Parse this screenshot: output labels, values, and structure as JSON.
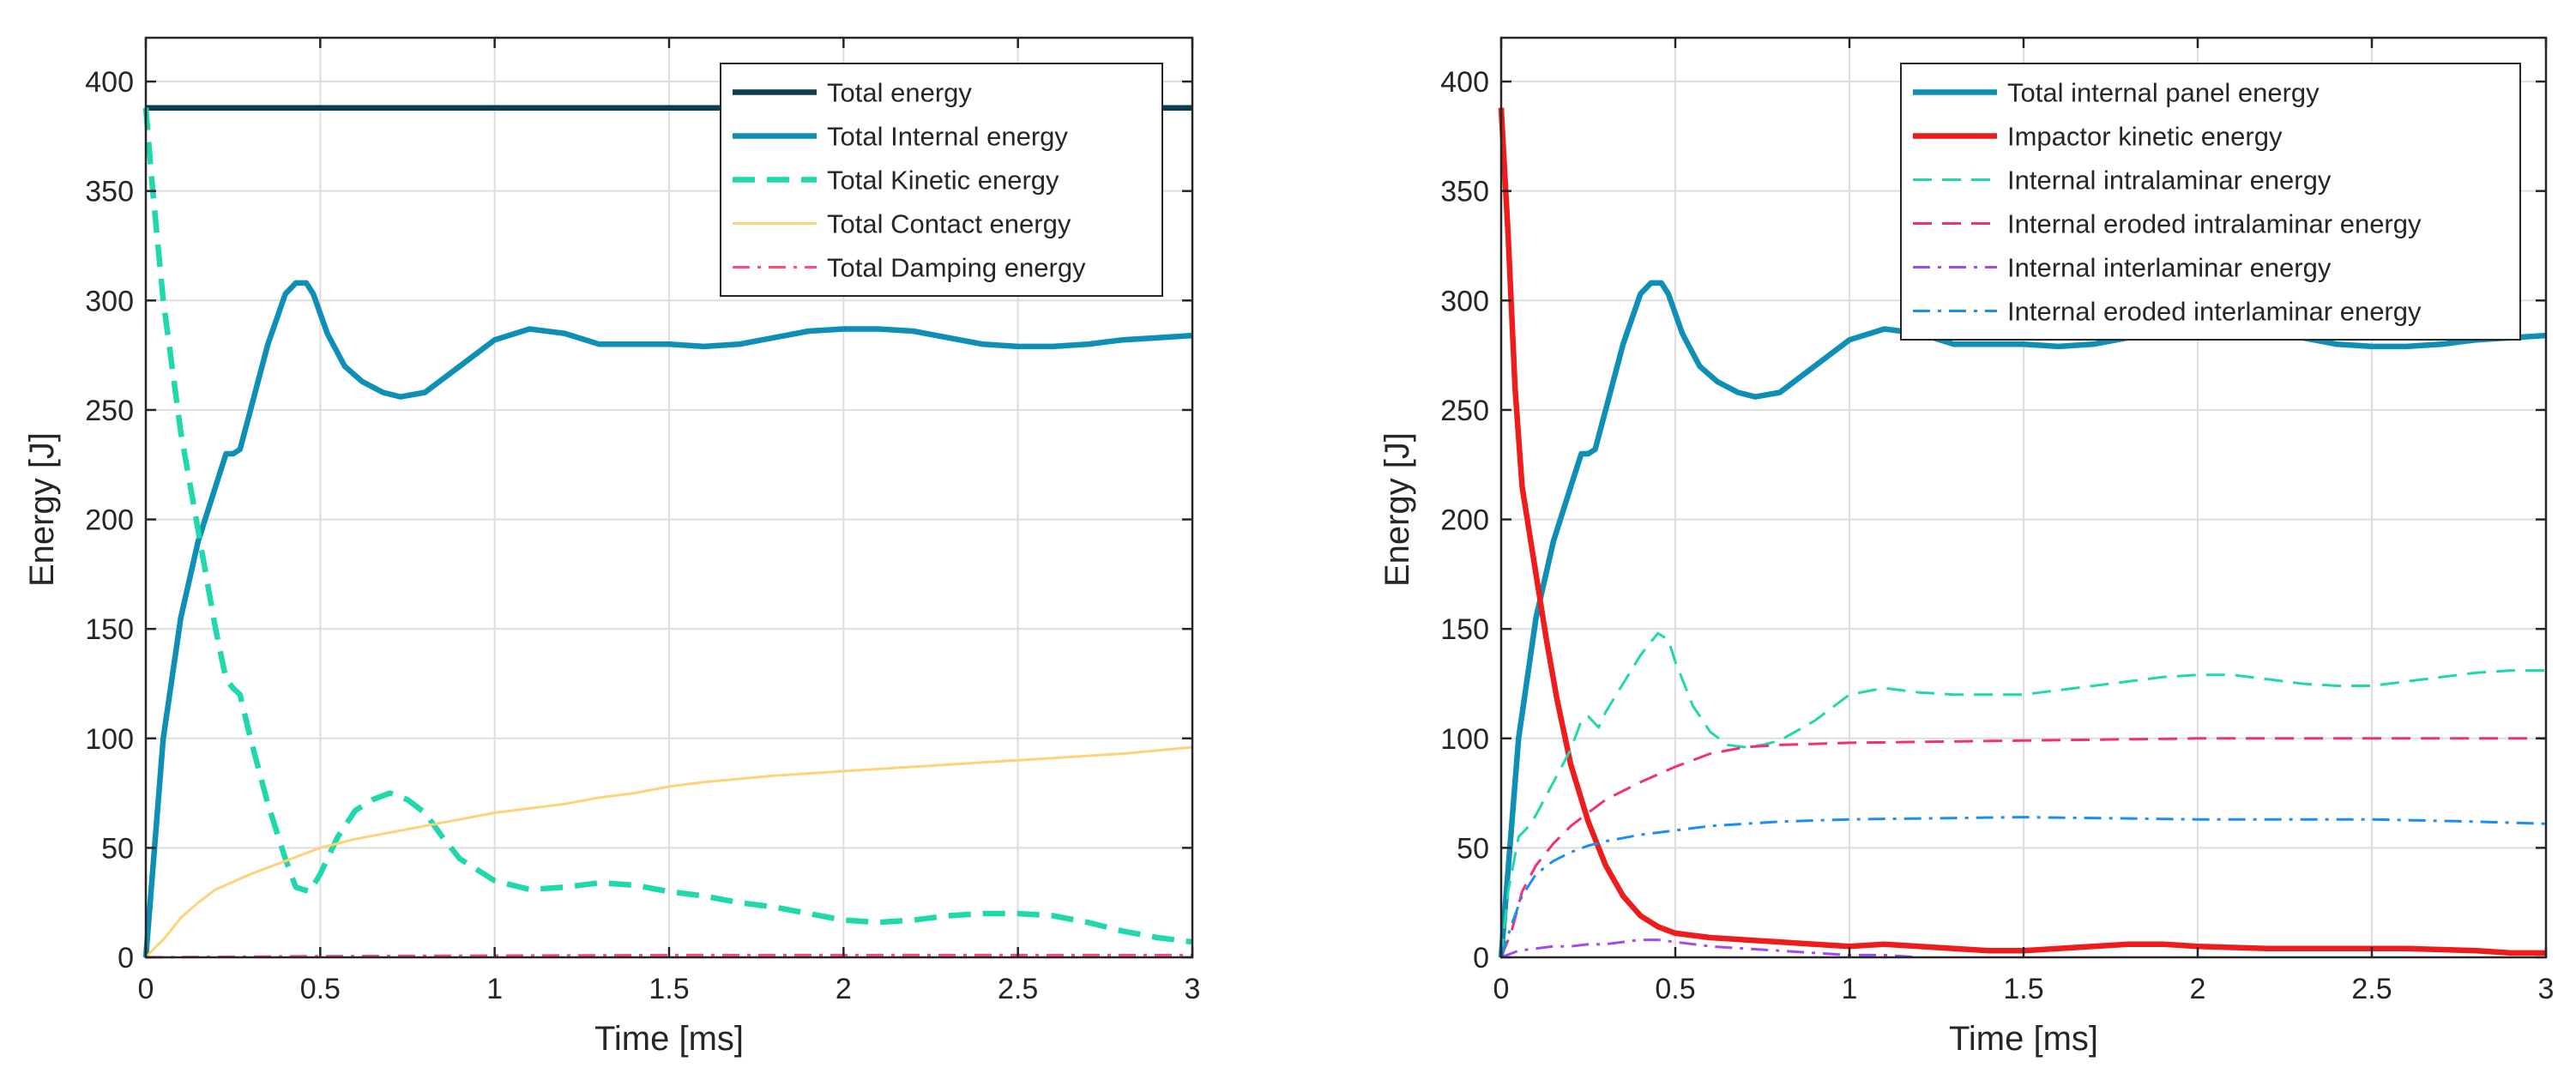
{
  "chart_data": [
    {
      "type": "line",
      "xlabel": "Time [ms]",
      "ylabel": "Energy [J]",
      "xlim": [
        0,
        3
      ],
      "ylim": [
        0,
        420
      ],
      "xticks": [
        0,
        0.5,
        1,
        1.5,
        2,
        2.5,
        3
      ],
      "xtick_labels": [
        "0",
        "0.5",
        "1",
        "1.5",
        "2",
        "2.5",
        "3"
      ],
      "yticks": [
        0,
        50,
        100,
        150,
        200,
        250,
        300,
        350,
        400
      ],
      "ytick_labels": [
        "0",
        "50",
        "100",
        "150",
        "200",
        "250",
        "300",
        "350",
        "400"
      ],
      "grid": true,
      "legend_position": "top-right",
      "series": [
        {
          "name": "Total energy",
          "color": "#0b3d4f",
          "style": "solid",
          "weight": "bold",
          "x": [
            0,
            0.5,
            1,
            1.5,
            2,
            2.5,
            3
          ],
          "y": [
            388,
            388,
            388,
            388,
            388,
            388,
            388
          ]
        },
        {
          "name": "Total Internal energy",
          "color": "#0e8fb5",
          "style": "solid",
          "weight": "bold",
          "x": [
            0,
            0.02,
            0.05,
            0.1,
            0.15,
            0.2,
            0.23,
            0.25,
            0.27,
            0.3,
            0.35,
            0.4,
            0.43,
            0.46,
            0.48,
            0.52,
            0.57,
            0.62,
            0.68,
            0.73,
            0.8,
            0.9,
            1.0,
            1.1,
            1.2,
            1.3,
            1.4,
            1.5,
            1.6,
            1.7,
            1.8,
            1.9,
            2.0,
            2.1,
            2.2,
            2.3,
            2.4,
            2.5,
            2.6,
            2.7,
            2.8,
            2.9,
            3.0
          ],
          "y": [
            0,
            40,
            100,
            155,
            190,
            215,
            230,
            230,
            232,
            250,
            280,
            303,
            308,
            308,
            303,
            285,
            270,
            263,
            258,
            256,
            258,
            270,
            282,
            287,
            285,
            280,
            280,
            280,
            279,
            280,
            283,
            286,
            287,
            287,
            286,
            283,
            280,
            279,
            279,
            280,
            282,
            283,
            284
          ]
        },
        {
          "name": "Total Kinetic energy",
          "color": "#1fd8ab",
          "style": "dashed",
          "weight": "bold",
          "x": [
            0,
            0.02,
            0.05,
            0.1,
            0.15,
            0.2,
            0.23,
            0.25,
            0.27,
            0.3,
            0.35,
            0.4,
            0.43,
            0.47,
            0.5,
            0.55,
            0.6,
            0.65,
            0.7,
            0.75,
            0.8,
            0.85,
            0.9,
            1.0,
            1.1,
            1.2,
            1.3,
            1.4,
            1.5,
            1.6,
            1.7,
            1.8,
            1.9,
            2.0,
            2.1,
            2.2,
            2.3,
            2.4,
            2.5,
            2.6,
            2.7,
            2.8,
            2.9,
            3.0
          ],
          "y": [
            388,
            350,
            300,
            240,
            195,
            150,
            127,
            123,
            120,
            100,
            70,
            45,
            32,
            30,
            38,
            55,
            67,
            72,
            75,
            72,
            66,
            55,
            45,
            35,
            31,
            32,
            34,
            33,
            30,
            28,
            25,
            23,
            20,
            17,
            16,
            17,
            19,
            20,
            20,
            19,
            16,
            12,
            9,
            7
          ]
        },
        {
          "name": "Total Contact energy",
          "color": "#ffd27a",
          "style": "solid",
          "weight": "normal",
          "x": [
            0,
            0.03,
            0.05,
            0.1,
            0.15,
            0.2,
            0.3,
            0.4,
            0.5,
            0.6,
            0.7,
            0.8,
            0.9,
            1.0,
            1.1,
            1.2,
            1.3,
            1.4,
            1.5,
            1.6,
            1.8,
            2.0,
            2.2,
            2.4,
            2.6,
            2.8,
            3.0
          ],
          "y": [
            0,
            5,
            8,
            18,
            25,
            31,
            38,
            44,
            50,
            54,
            57,
            60,
            63,
            66,
            68,
            70,
            73,
            75,
            78,
            80,
            83,
            85,
            87,
            89,
            91,
            93,
            96
          ]
        },
        {
          "name": "Total Damping energy",
          "color": "#ff4d7a",
          "style": "dashdot",
          "weight": "normal",
          "x": [
            0,
            0.5,
            1,
            1.5,
            2,
            2.5,
            3
          ],
          "y": [
            0,
            0.5,
            0.8,
            1,
            1,
            1,
            1
          ]
        }
      ]
    },
    {
      "type": "line",
      "xlabel": "Time [ms]",
      "ylabel": "Energy [J]",
      "xlim": [
        0,
        3
      ],
      "ylim": [
        0,
        420
      ],
      "xticks": [
        0,
        0.5,
        1,
        1.5,
        2,
        2.5,
        3
      ],
      "xtick_labels": [
        "0",
        "0.5",
        "1",
        "1.5",
        "2",
        "2.5",
        "3"
      ],
      "yticks": [
        0,
        50,
        100,
        150,
        200,
        250,
        300,
        350,
        400
      ],
      "ytick_labels": [
        "0",
        "50",
        "100",
        "150",
        "200",
        "250",
        "300",
        "350",
        "400"
      ],
      "grid": true,
      "legend_position": "top-right",
      "series": [
        {
          "name": "Total internal panel energy",
          "color": "#0e8fb5",
          "style": "solid",
          "weight": "bold",
          "x": [
            0,
            0.02,
            0.05,
            0.1,
            0.15,
            0.2,
            0.23,
            0.25,
            0.27,
            0.3,
            0.35,
            0.4,
            0.43,
            0.46,
            0.48,
            0.52,
            0.57,
            0.62,
            0.68,
            0.73,
            0.8,
            0.9,
            1.0,
            1.1,
            1.2,
            1.3,
            1.4,
            1.5,
            1.6,
            1.7,
            1.8,
            1.9,
            2.0,
            2.1,
            2.2,
            2.3,
            2.4,
            2.5,
            2.6,
            2.7,
            2.8,
            2.9,
            3.0
          ],
          "y": [
            0,
            40,
            100,
            155,
            190,
            215,
            230,
            230,
            232,
            250,
            280,
            303,
            308,
            308,
            303,
            285,
            270,
            263,
            258,
            256,
            258,
            270,
            282,
            287,
            285,
            280,
            280,
            280,
            279,
            280,
            283,
            286,
            287,
            287,
            286,
            283,
            280,
            279,
            279,
            280,
            282,
            283,
            284
          ]
        },
        {
          "name": "Impactor kinetic energy",
          "color": "#ee1c1c",
          "style": "solid",
          "weight": "bold",
          "x": [
            0,
            0.02,
            0.04,
            0.06,
            0.08,
            0.1,
            0.13,
            0.16,
            0.2,
            0.25,
            0.3,
            0.35,
            0.4,
            0.45,
            0.5,
            0.6,
            0.7,
            0.8,
            0.9,
            1.0,
            1.1,
            1.2,
            1.3,
            1.4,
            1.5,
            1.6,
            1.7,
            1.8,
            1.9,
            2.0,
            2.2,
            2.4,
            2.6,
            2.8,
            2.9,
            3.0
          ],
          "y": [
            388,
            330,
            260,
            215,
            195,
            175,
            145,
            118,
            88,
            62,
            42,
            28,
            19,
            14,
            11,
            9,
            8,
            7,
            6,
            5,
            6,
            5,
            4,
            3,
            3,
            4,
            5,
            6,
            6,
            5,
            4,
            4,
            4,
            3,
            2,
            2
          ]
        },
        {
          "name": "Internal intralaminar energy",
          "color": "#1fd8ab",
          "style": "dashed",
          "weight": "normal",
          "x": [
            0,
            0.02,
            0.05,
            0.08,
            0.1,
            0.15,
            0.2,
            0.23,
            0.25,
            0.28,
            0.3,
            0.35,
            0.4,
            0.45,
            0.48,
            0.5,
            0.55,
            0.6,
            0.65,
            0.7,
            0.75,
            0.8,
            0.9,
            1.0,
            1.1,
            1.2,
            1.3,
            1.4,
            1.5,
            1.6,
            1.7,
            1.8,
            1.9,
            2.0,
            2.1,
            2.2,
            2.3,
            2.4,
            2.5,
            2.6,
            2.7,
            2.8,
            2.9,
            3.0
          ],
          "y": [
            0,
            30,
            55,
            60,
            65,
            80,
            95,
            108,
            110,
            105,
            112,
            125,
            138,
            148,
            145,
            135,
            115,
            103,
            97,
            96,
            97,
            99,
            108,
            120,
            123,
            121,
            120,
            120,
            120,
            122,
            124,
            126,
            128,
            129,
            129,
            127,
            125,
            124,
            124,
            126,
            128,
            130,
            131,
            131
          ]
        },
        {
          "name": "Internal eroded intralaminar energy",
          "color": "#f0307a",
          "style": "dashed",
          "weight": "normal",
          "x": [
            0,
            0.03,
            0.06,
            0.1,
            0.15,
            0.2,
            0.25,
            0.3,
            0.4,
            0.5,
            0.6,
            0.7,
            0.8,
            1.0,
            1.5,
            2.0,
            2.5,
            3.0
          ],
          "y": [
            0,
            12,
            30,
            42,
            52,
            60,
            66,
            72,
            80,
            87,
            93,
            96,
            97,
            98,
            99,
            100,
            100,
            100
          ]
        },
        {
          "name": "Internal interlaminar energy",
          "color": "#a24cf0",
          "style": "dashdot",
          "weight": "normal",
          "x": [
            0,
            0.05,
            0.1,
            0.15,
            0.2,
            0.25,
            0.3,
            0.35,
            0.4,
            0.45,
            0.5,
            0.6,
            0.7,
            0.8,
            0.9,
            1.0,
            1.1,
            1.2
          ],
          "y": [
            0,
            3,
            4,
            5,
            5,
            6,
            6,
            7,
            8,
            8,
            7,
            5,
            4,
            3,
            2,
            1,
            1,
            0
          ]
        },
        {
          "name": "Internal eroded interlaminar energy",
          "color": "#1b8ef5",
          "style": "dashdot",
          "weight": "normal",
          "x": [
            0,
            0.03,
            0.06,
            0.1,
            0.15,
            0.2,
            0.25,
            0.3,
            0.4,
            0.5,
            0.6,
            0.7,
            0.8,
            1.0,
            1.5,
            2.0,
            2.5,
            2.8,
            3.0
          ],
          "y": [
            0,
            15,
            28,
            38,
            44,
            48,
            51,
            53,
            56,
            58,
            60,
            61,
            62,
            63,
            64,
            63,
            63,
            62,
            61
          ]
        }
      ]
    }
  ]
}
